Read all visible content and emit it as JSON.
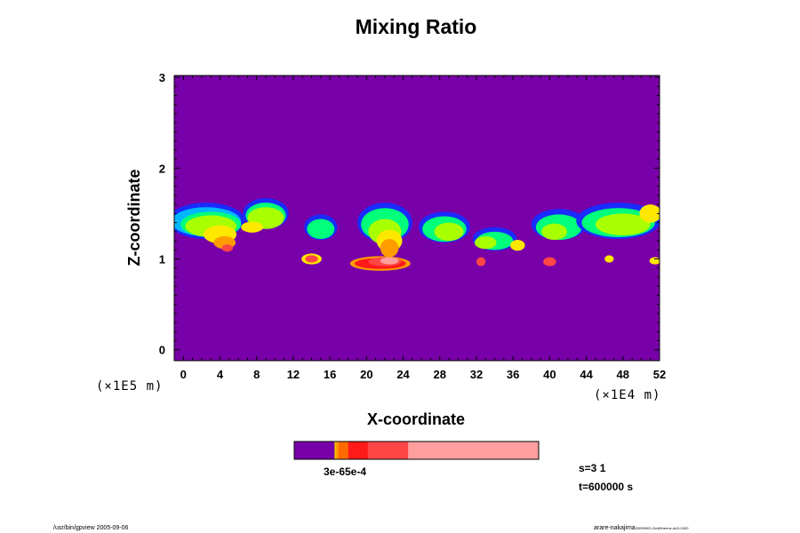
{
  "chart_data": {
    "type": "heatmap",
    "title": "Mixing Ratio",
    "xlabel": "X-coordinate",
    "ylabel": "Z-coordinate",
    "x_scale_note": "(×1E4 m)",
    "y_scale_note": "(×1E5 m)",
    "x_ticks": [
      0,
      4,
      8,
      12,
      16,
      20,
      24,
      28,
      32,
      36,
      40,
      44,
      48,
      52
    ],
    "y_ticks": [
      0,
      1,
      2,
      3
    ],
    "xlim": [
      -1,
      52
    ],
    "ylim": [
      -0.12,
      3.02
    ],
    "background_color": "#7800a8",
    "colorbar": {
      "label": "3e-65e-4",
      "segments": [
        {
          "color": "#7800a8",
          "fraction": 0.165
        },
        {
          "color": "#f5c800",
          "fraction": 0.006
        },
        {
          "color": "#ff9d00",
          "fraction": 0.01
        },
        {
          "color": "#ff6a00",
          "fraction": 0.04
        },
        {
          "color": "#ff1a1a",
          "fraction": 0.08
        },
        {
          "color": "#ff4646",
          "fraction": 0.165
        },
        {
          "color": "#ff9e9e",
          "fraction": 0.534
        }
      ]
    },
    "features": [
      {
        "x": 2.5,
        "z": 1.42,
        "rx": 4.2,
        "rz": 0.2,
        "color": "#1a2bff"
      },
      {
        "x": 2.5,
        "z": 1.41,
        "rx": 3.8,
        "rz": 0.16,
        "color": "#00b8ff"
      },
      {
        "x": 3.0,
        "z": 1.38,
        "rx": 3.3,
        "rz": 0.14,
        "color": "#00ff7a"
      },
      {
        "x": 3.0,
        "z": 1.36,
        "rx": 2.8,
        "rz": 0.12,
        "color": "#a8ff00"
      },
      {
        "x": 4.0,
        "z": 1.27,
        "rx": 1.8,
        "rz": 0.1,
        "color": "#ffe800"
      },
      {
        "x": 4.5,
        "z": 1.18,
        "rx": 1.2,
        "rz": 0.07,
        "color": "#ff9d00"
      },
      {
        "x": 4.8,
        "z": 1.12,
        "rx": 0.6,
        "rz": 0.04,
        "color": "#ff4646"
      },
      {
        "x": 9.0,
        "z": 1.5,
        "rx": 2.5,
        "rz": 0.17,
        "color": "#1a2bff"
      },
      {
        "x": 9.0,
        "z": 1.48,
        "rx": 2.2,
        "rz": 0.14,
        "color": "#00ff7a"
      },
      {
        "x": 9.0,
        "z": 1.45,
        "rx": 2.0,
        "rz": 0.12,
        "color": "#a8ff00"
      },
      {
        "x": 7.5,
        "z": 1.35,
        "rx": 1.2,
        "rz": 0.06,
        "color": "#ffe800"
      },
      {
        "x": 15.0,
        "z": 1.35,
        "rx": 1.8,
        "rz": 0.14,
        "color": "#1a2bff"
      },
      {
        "x": 15.0,
        "z": 1.33,
        "rx": 1.5,
        "rz": 0.11,
        "color": "#00ff7a"
      },
      {
        "x": 14.0,
        "z": 1.0,
        "rx": 1.1,
        "rz": 0.06,
        "color": "#ffe800"
      },
      {
        "x": 14.0,
        "z": 1.0,
        "rx": 0.7,
        "rz": 0.04,
        "color": "#ff4646"
      },
      {
        "x": 22.0,
        "z": 1.4,
        "rx": 3.0,
        "rz": 0.22,
        "color": "#1a2bff"
      },
      {
        "x": 22.0,
        "z": 1.38,
        "rx": 2.6,
        "rz": 0.18,
        "color": "#00ff7a"
      },
      {
        "x": 22.0,
        "z": 1.3,
        "rx": 1.8,
        "rz": 0.14,
        "color": "#a8ff00"
      },
      {
        "x": 22.5,
        "z": 1.2,
        "rx": 1.4,
        "rz": 0.12,
        "color": "#ffe800"
      },
      {
        "x": 22.5,
        "z": 1.12,
        "rx": 1.0,
        "rz": 0.1,
        "color": "#ff9d00"
      },
      {
        "x": 21.5,
        "z": 0.95,
        "rx": 3.3,
        "rz": 0.08,
        "color": "#ff9d00"
      },
      {
        "x": 21.5,
        "z": 0.95,
        "rx": 2.8,
        "rz": 0.06,
        "color": "#ff1a1a"
      },
      {
        "x": 22.0,
        "z": 0.97,
        "rx": 1.8,
        "rz": 0.05,
        "color": "#ff4646"
      },
      {
        "x": 22.5,
        "z": 0.98,
        "rx": 1.0,
        "rz": 0.04,
        "color": "#ff9e9e"
      },
      {
        "x": 28.5,
        "z": 1.35,
        "rx": 2.8,
        "rz": 0.17,
        "color": "#1a2bff"
      },
      {
        "x": 28.5,
        "z": 1.33,
        "rx": 2.4,
        "rz": 0.14,
        "color": "#00ff7a"
      },
      {
        "x": 29.0,
        "z": 1.3,
        "rx": 1.6,
        "rz": 0.1,
        "color": "#a8ff00"
      },
      {
        "x": 34.0,
        "z": 1.22,
        "rx": 2.4,
        "rz": 0.13,
        "color": "#1a2bff"
      },
      {
        "x": 34.0,
        "z": 1.2,
        "rx": 2.0,
        "rz": 0.1,
        "color": "#00ff7a"
      },
      {
        "x": 33.0,
        "z": 1.18,
        "rx": 1.2,
        "rz": 0.07,
        "color": "#a8ff00"
      },
      {
        "x": 36.5,
        "z": 1.15,
        "rx": 0.8,
        "rz": 0.06,
        "color": "#ffe800"
      },
      {
        "x": 32.5,
        "z": 0.97,
        "rx": 0.5,
        "rz": 0.05,
        "color": "#ff4646"
      },
      {
        "x": 41.0,
        "z": 1.38,
        "rx": 3.0,
        "rz": 0.17,
        "color": "#1a2bff"
      },
      {
        "x": 41.0,
        "z": 1.35,
        "rx": 2.5,
        "rz": 0.14,
        "color": "#00ff7a"
      },
      {
        "x": 40.5,
        "z": 1.3,
        "rx": 1.4,
        "rz": 0.09,
        "color": "#a8ff00"
      },
      {
        "x": 40.0,
        "z": 0.97,
        "rx": 0.7,
        "rz": 0.05,
        "color": "#ff4646"
      },
      {
        "x": 47.5,
        "z": 1.42,
        "rx": 4.6,
        "rz": 0.2,
        "color": "#1a2bff"
      },
      {
        "x": 47.5,
        "z": 1.4,
        "rx": 4.0,
        "rz": 0.16,
        "color": "#00ff7a"
      },
      {
        "x": 48.0,
        "z": 1.38,
        "rx": 3.0,
        "rz": 0.12,
        "color": "#a8ff00"
      },
      {
        "x": 51.0,
        "z": 1.5,
        "rx": 1.2,
        "rz": 0.1,
        "color": "#ffe800"
      },
      {
        "x": 46.5,
        "z": 1.0,
        "rx": 0.5,
        "rz": 0.04,
        "color": "#ffe800"
      },
      {
        "x": 51.5,
        "z": 0.98,
        "rx": 0.6,
        "rz": 0.04,
        "color": "#ffe800"
      }
    ]
  },
  "info": {
    "slice": "s=3 1",
    "time": "t=600000 s"
  },
  "footer": {
    "left": "/usr/bin/gpview 2005-09-06",
    "right_main": "arare-nakajima",
    "right_sub": "20050903-2/e@thermx,dc3>1000"
  }
}
